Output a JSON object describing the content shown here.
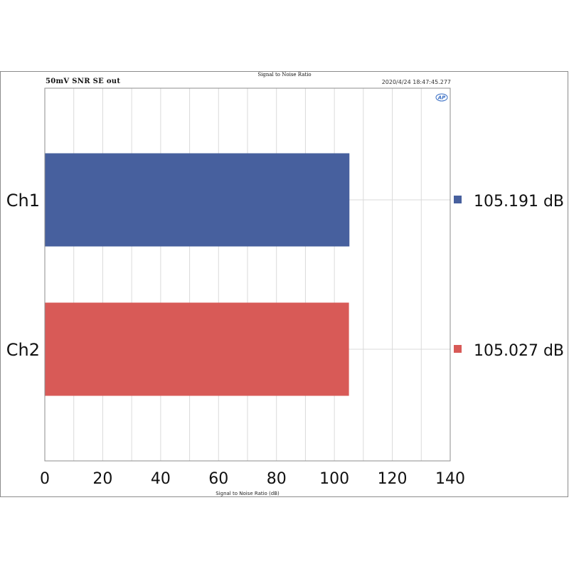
{
  "header": {
    "title": "Signal to Noise Ratio",
    "subtitle": "50mV SNR SE out",
    "timestamp": "2020/4/24 18:47:45.277",
    "logo_text": "AP"
  },
  "colors": {
    "ch1": "#47609e",
    "ch2": "#d85a57",
    "grid": "#dadada",
    "axis": "#8c8c8c"
  },
  "chart_data": {
    "type": "bar",
    "orientation": "horizontal",
    "title": "Signal to Noise Ratio",
    "subtitle": "50mV SNR SE out",
    "xlabel": "Signal to Noise Ratio (dB)",
    "ylabel": "",
    "xlim": [
      0,
      140
    ],
    "xticks": [
      0,
      20,
      40,
      60,
      80,
      100,
      120,
      140
    ],
    "grid": true,
    "legend": "right",
    "categories": [
      "Ch1",
      "Ch2"
    ],
    "values": [
      105.191,
      105.027
    ],
    "value_labels": [
      "105.191 dB",
      "105.027 dB"
    ]
  }
}
